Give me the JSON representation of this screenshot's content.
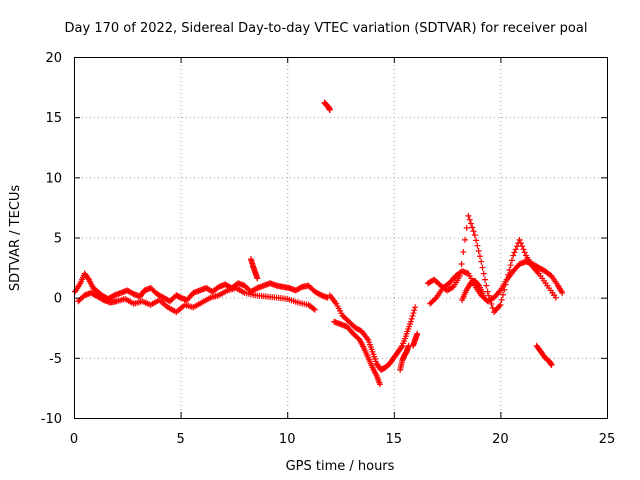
{
  "chart_data": {
    "type": "scatter",
    "title": "Day 170 of 2022, Sidereal Day-to-day VTEC variation (SDTVAR) for receiver poal",
    "xlabel": "GPS time / hours",
    "ylabel": "SDTVAR / TECUs",
    "xlim": [
      0,
      25
    ],
    "ylim": [
      -10,
      20
    ],
    "xticks": [
      0,
      5,
      10,
      15,
      20,
      25
    ],
    "yticks": [
      -10,
      -5,
      0,
      5,
      10,
      15,
      20
    ],
    "grid": true,
    "marker": "+",
    "color": "#ff0000",
    "series": [
      {
        "name": "SDTVAR",
        "segments": [
          {
            "x": [
              0.05,
              0.3,
              0.5,
              0.7,
              0.9,
              1.1,
              1.3,
              1.6,
              1.9,
              2.2,
              2.5,
              2.8,
              3.1,
              3.3,
              3.6,
              3.9,
              4.2,
              4.5,
              4.8,
              5.0,
              5.3,
              5.6,
              5.9,
              6.2,
              6.5,
              6.8,
              7.1,
              7.4,
              7.7,
              8.0,
              8.3,
              8.6,
              8.9,
              9.2,
              9.5,
              9.8,
              10.1,
              10.4,
              10.7,
              11.0,
              11.3,
              11.6,
              11.9
            ],
            "y": [
              0.5,
              1.2,
              2.0,
              1.5,
              0.8,
              0.5,
              0.2,
              -0.1,
              0.2,
              0.4,
              0.6,
              0.3,
              0.1,
              0.6,
              0.8,
              0.3,
              0.0,
              -0.3,
              0.2,
              0.0,
              -0.2,
              0.4,
              0.6,
              0.8,
              0.5,
              0.9,
              1.1,
              0.8,
              1.2,
              1.0,
              0.5,
              0.8,
              1.0,
              1.2,
              1.0,
              0.9,
              0.8,
              0.6,
              0.9,
              1.0,
              0.5,
              0.2,
              0.0
            ]
          },
          {
            "x": [
              0.2,
              0.5,
              0.8,
              1.1,
              1.4,
              1.7,
              2.0,
              2.4,
              2.8,
              3.2,
              3.6,
              4.0,
              4.4,
              4.8,
              5.2,
              5.6,
              6.0,
              6.4,
              6.8,
              7.2,
              7.6,
              8.0,
              8.5,
              9.0,
              9.5,
              10.0,
              10.5,
              11.0,
              11.3
            ],
            "y": [
              -0.3,
              0.2,
              0.4,
              0.1,
              -0.2,
              -0.4,
              -0.3,
              -0.1,
              -0.5,
              -0.3,
              -0.6,
              -0.2,
              -0.8,
              -1.2,
              -0.6,
              -0.8,
              -0.4,
              0.0,
              0.2,
              0.6,
              0.8,
              0.4,
              0.2,
              0.1,
              0.0,
              -0.1,
              -0.4,
              -0.6,
              -1.0
            ]
          },
          {
            "x": [
              8.3,
              8.4,
              8.5,
              8.6
            ],
            "y": [
              3.2,
              2.6,
              2.1,
              1.6
            ]
          },
          {
            "x": [
              11.75,
              11.85,
              11.95,
              12.0
            ],
            "y": [
              16.2,
              16.0,
              15.8,
              15.6
            ]
          },
          {
            "x": [
              12.0,
              12.3,
              12.6,
              12.9,
              13.2,
              13.5,
              13.8,
              14.0,
              14.2,
              14.4,
              14.6,
              14.8,
              15.0,
              15.2,
              15.4,
              15.6,
              15.8,
              16.0
            ],
            "y": [
              0.2,
              -0.5,
              -1.5,
              -2.0,
              -2.5,
              -2.8,
              -3.5,
              -4.5,
              -5.5,
              -6.0,
              -5.8,
              -5.5,
              -5.0,
              -4.5,
              -4.0,
              -3.0,
              -2.0,
              -0.8
            ]
          },
          {
            "x": [
              12.2,
              12.5,
              12.8,
              13.1,
              13.4,
              13.6,
              13.8,
              14.0,
              14.2,
              14.35
            ],
            "y": [
              -2.0,
              -2.2,
              -2.4,
              -3.0,
              -3.5,
              -4.2,
              -5.0,
              -5.8,
              -6.5,
              -7.2
            ]
          },
          {
            "x": [
              15.9,
              16.0,
              16.1
            ],
            "y": [
              -4.0,
              -3.5,
              -3.0
            ]
          },
          {
            "x": [
              15.3,
              15.4,
              15.5,
              15.6,
              15.7
            ],
            "y": [
              -6.0,
              -5.2,
              -4.8,
              -4.5,
              -4.0
            ]
          },
          {
            "x": [
              16.7,
              17.0,
              17.3,
              17.6,
              17.9,
              18.2,
              18.5,
              18.8,
              19.1,
              19.4,
              19.7,
              20.0,
              20.3,
              20.6,
              20.9,
              21.2,
              21.5,
              21.8,
              22.1,
              22.4,
              22.7,
              22.9
            ],
            "y": [
              -0.5,
              0.0,
              0.8,
              1.2,
              1.8,
              2.2,
              2.0,
              1.0,
              0.2,
              -0.3,
              0.0,
              0.6,
              1.5,
              2.2,
              2.8,
              3.0,
              2.8,
              2.5,
              2.2,
              1.8,
              1.0,
              0.4
            ]
          },
          {
            "x": [
              16.6,
              16.9,
              17.2,
              17.5,
              17.8,
              18.1,
              18.5,
              18.8,
              19.1,
              19.4,
              19.7,
              20.0,
              20.3,
              20.6,
              20.9,
              21.2,
              21.5,
              21.8,
              22.2,
              22.6
            ],
            "y": [
              1.2,
              1.5,
              1.0,
              0.6,
              0.9,
              1.8,
              6.8,
              5.2,
              3.0,
              0.5,
              -1.2,
              -0.6,
              1.5,
              3.5,
              4.8,
              3.5,
              2.6,
              2.0,
              1.0,
              0.0
            ]
          },
          {
            "x": [
              18.2,
              18.4,
              18.6,
              18.8,
              19.0,
              19.2
            ],
            "y": [
              -0.2,
              0.6,
              1.2,
              1.4,
              1.0,
              0.2
            ]
          },
          {
            "x": [
              21.7,
              21.9,
              22.1,
              22.3,
              22.4
            ],
            "y": [
              -4.0,
              -4.5,
              -5.0,
              -5.3,
              -5.6
            ]
          }
        ]
      }
    ]
  }
}
